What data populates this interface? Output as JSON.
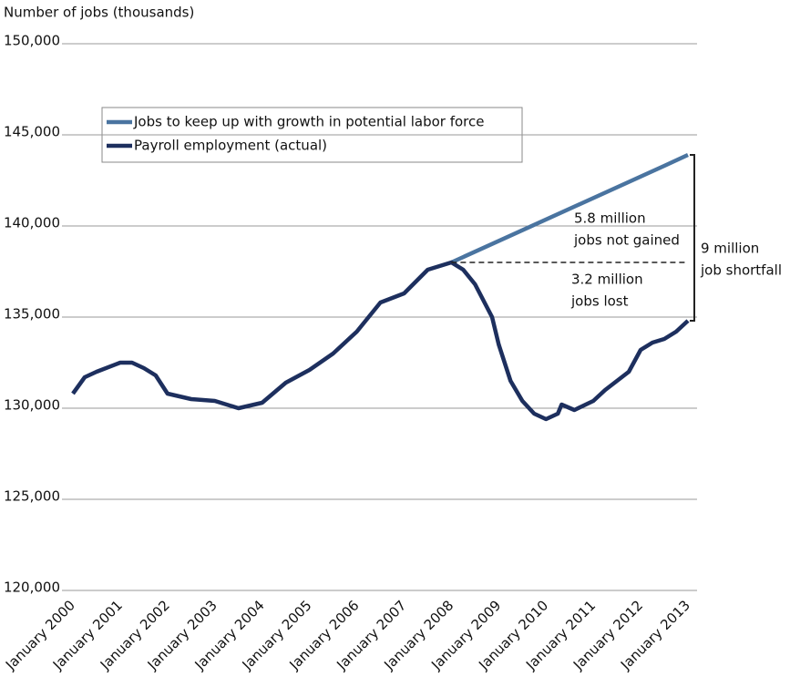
{
  "chart_data": {
    "type": "line",
    "y_axis_label": "Number of jobs (thousands)",
    "xlim": [
      2000,
      2013
    ],
    "xticks": [
      {
        "value": 2000,
        "label": "January 2000"
      },
      {
        "value": 2001,
        "label": "January 2001"
      },
      {
        "value": 2002,
        "label": "January 2002"
      },
      {
        "value": 2003,
        "label": "January 2003"
      },
      {
        "value": 2004,
        "label": "January 2004"
      },
      {
        "value": 2005,
        "label": "January 2005"
      },
      {
        "value": 2006,
        "label": "January 2006"
      },
      {
        "value": 2007,
        "label": "January 2007"
      },
      {
        "value": 2008,
        "label": "January 2008"
      },
      {
        "value": 2009,
        "label": "January 2009"
      },
      {
        "value": 2010,
        "label": "January 2010"
      },
      {
        "value": 2011,
        "label": "January 2011"
      },
      {
        "value": 2012,
        "label": "January 2012"
      },
      {
        "value": 2013,
        "label": "January 2013"
      }
    ],
    "ylim": [
      120000,
      150000
    ],
    "yticks": [
      {
        "value": 120000,
        "label": "120,000"
      },
      {
        "value": 125000,
        "label": "125,000"
      },
      {
        "value": 130000,
        "label": "130,000"
      },
      {
        "value": 135000,
        "label": "135,000"
      },
      {
        "value": 140000,
        "label": "140,000"
      },
      {
        "value": 145000,
        "label": "145,000"
      },
      {
        "value": 150000,
        "label": "150,000"
      }
    ],
    "grid": true,
    "series": [
      {
        "name": "Jobs to keep up with growth in potential labor force",
        "color": "#4a74a0",
        "x": [
          2008,
          2012.5,
          2013
        ],
        "values": [
          138000,
          143300,
          143900
        ]
      },
      {
        "name": "Payroll employment (actual)",
        "color": "#1d2f5e",
        "x": [
          2000,
          2000.25,
          2000.5,
          2001,
          2001.25,
          2001.5,
          2001.75,
          2002,
          2002.5,
          2003,
          2003.5,
          2004,
          2004.5,
          2005,
          2005.5,
          2006,
          2006.5,
          2007,
          2007.5,
          2008,
          2008.25,
          2008.5,
          2008.86,
          2009,
          2009.25,
          2009.5,
          2009.75,
          2010,
          2010.25,
          2010.33,
          2010.6,
          2011,
          2011.25,
          2011.5,
          2011.75,
          2012,
          2012.25,
          2012.5,
          2012.75,
          2013
        ],
        "values": [
          130800,
          131700,
          132000,
          132500,
          132500,
          132200,
          131800,
          130800,
          130500,
          130400,
          130000,
          130300,
          131400,
          132100,
          133000,
          134200,
          135800,
          136300,
          137600,
          138000,
          137600,
          136800,
          135000,
          133500,
          131500,
          130400,
          129700,
          129400,
          129700,
          130200,
          129900,
          130400,
          131000,
          131500,
          132000,
          133200,
          133600,
          133800,
          134200,
          134800
        ]
      }
    ],
    "annotations": [
      {
        "text": [
          "5.8 million",
          "jobs not gained"
        ]
      },
      {
        "text": [
          "3.2 million",
          "jobs lost"
        ]
      },
      {
        "text": [
          "9 million",
          "job shortfall"
        ]
      }
    ]
  }
}
